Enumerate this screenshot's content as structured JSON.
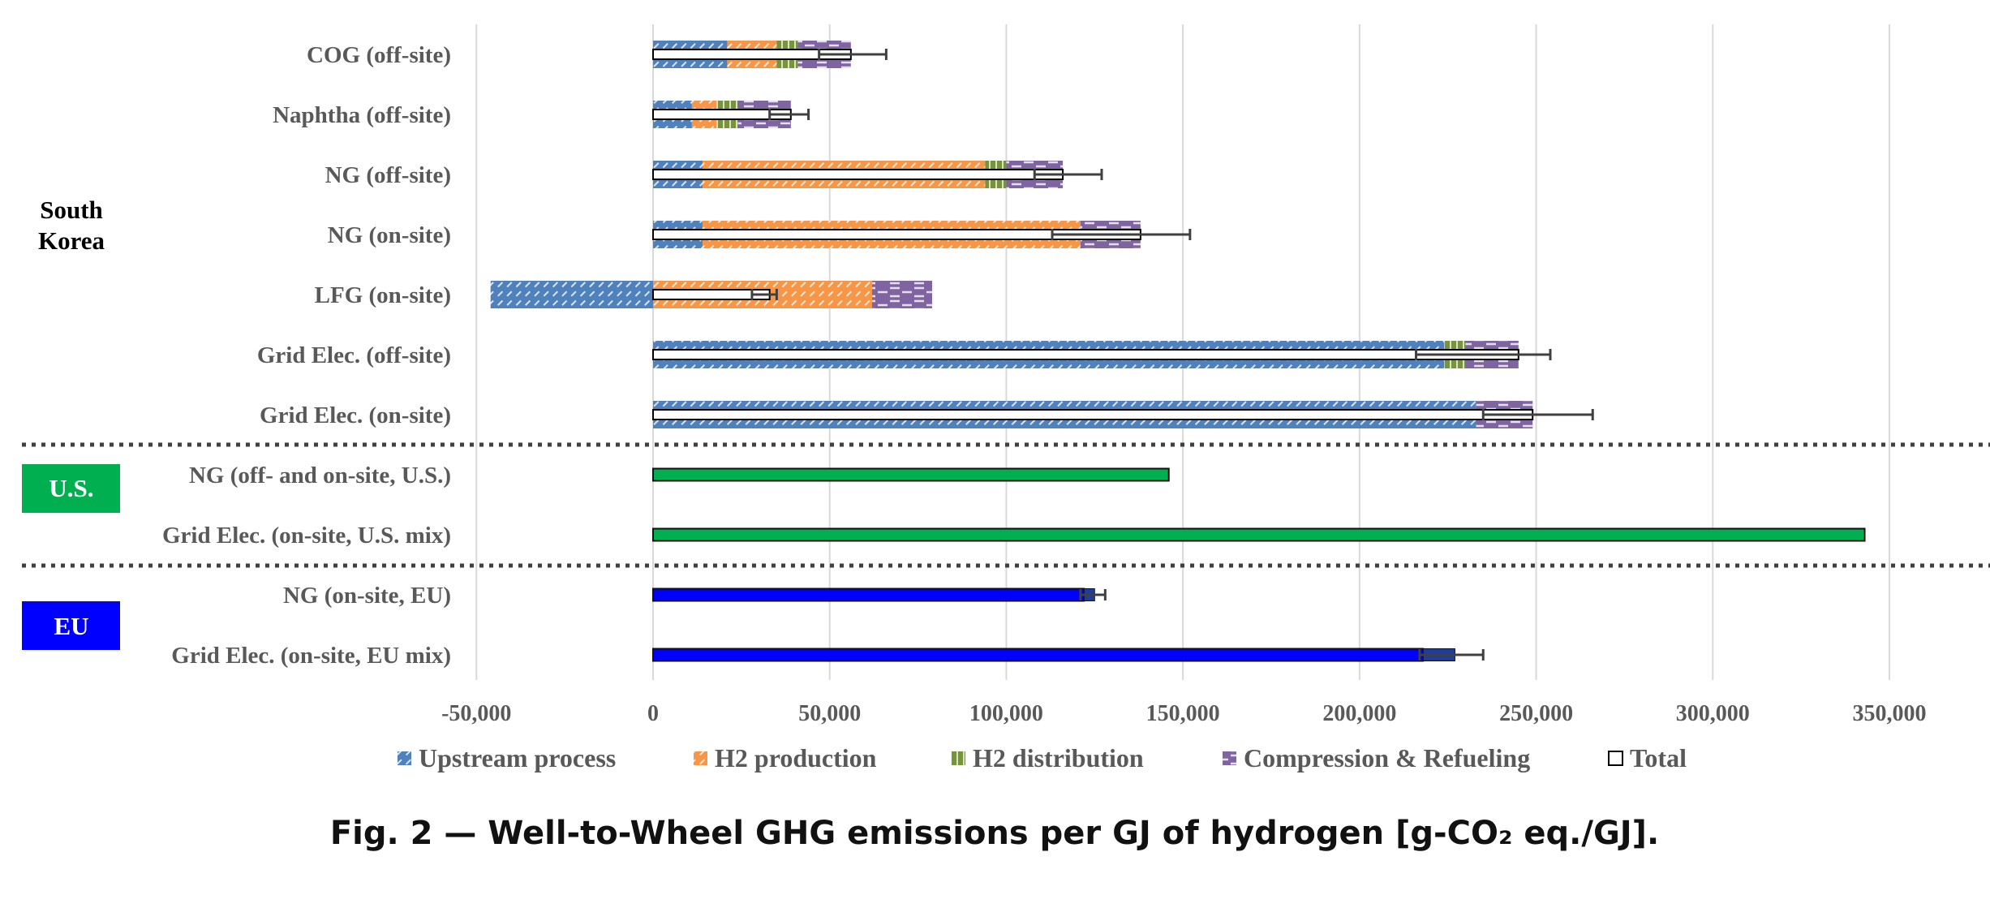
{
  "chart_data": {
    "type": "bar",
    "orientation": "horizontal",
    "stacked": true,
    "caption": "Fig. 2 — Well-to-Wheel GHG emissions per GJ of hydrogen [g-CO₂ eq./GJ].",
    "xlim": [
      -50000,
      350000
    ],
    "x_ticks": [
      -50000,
      0,
      50000,
      100000,
      150000,
      200000,
      250000,
      300000,
      350000
    ],
    "x_tick_labels": [
      "-50,000",
      "0",
      "50,000",
      "100,000",
      "150,000",
      "200,000",
      "250,000",
      "300,000",
      "350,000"
    ],
    "grid": "vertical",
    "legend_position": "bottom",
    "legend": [
      {
        "key": "upstream",
        "label": "Upstream process",
        "color": "#4f81bd",
        "pattern": "diagonal-dashes"
      },
      {
        "key": "h2prod",
        "label": "H2 production",
        "color": "#f79646",
        "pattern": "diagonal-dashes"
      },
      {
        "key": "h2dist",
        "label": "H2 distribution",
        "color": "#77933c",
        "pattern": "vertical"
      },
      {
        "key": "comp",
        "label": "Compression & Refueling",
        "color": "#8064a2",
        "pattern": "dashes"
      },
      {
        "key": "total",
        "label": "Total",
        "color": "#ffffff",
        "pattern": "outline"
      }
    ],
    "regions": [
      {
        "label_lines": [
          "South",
          "Korea"
        ],
        "style": "plain",
        "bg": "",
        "fg": "#000000"
      },
      {
        "label_lines": [
          "U.S."
        ],
        "style": "box",
        "bg": "#00b050",
        "fg": "#ffffff"
      },
      {
        "label_lines": [
          "EU"
        ],
        "style": "box",
        "bg": "#0000ff",
        "fg": "#ffffff"
      }
    ],
    "categories": [
      {
        "label": "COG (off-site)",
        "region": 0,
        "segments": {
          "upstream": 21000,
          "h2prod": 14000,
          "h2dist": 6000,
          "comp": 15000
        },
        "total": 56000,
        "error_low": 47000,
        "error_high": 66000
      },
      {
        "label": "Naphtha (off-site)",
        "region": 0,
        "segments": {
          "upstream": 11000,
          "h2prod": 7000,
          "h2dist": 6000,
          "comp": 15000
        },
        "total": 39000,
        "error_low": 33000,
        "error_high": 44000
      },
      {
        "label": "NG (off-site)",
        "region": 0,
        "segments": {
          "upstream": 14000,
          "h2prod": 80000,
          "h2dist": 6000,
          "comp": 16000
        },
        "total": 116000,
        "error_low": 108000,
        "error_high": 127000
      },
      {
        "label": "NG (on-site)",
        "region": 0,
        "segments": {
          "upstream": 14000,
          "h2prod": 107000,
          "h2dist": 0,
          "comp": 17000
        },
        "total": 138000,
        "error_low": 113000,
        "error_high": 152000
      },
      {
        "label": "LFG (on-site)",
        "region": 0,
        "segments": {
          "upstream": -46000,
          "h2prod": 62000,
          "h2dist": 0,
          "comp": 17000
        },
        "total": 33000,
        "error_low": 28000,
        "error_high": 35000
      },
      {
        "label": "Grid Elec. (off-site)",
        "region": 0,
        "segments": {
          "upstream": 224000,
          "h2prod": 0,
          "h2dist": 6000,
          "comp": 15000
        },
        "total": 245000,
        "error_low": 216000,
        "error_high": 254000
      },
      {
        "label": "Grid Elec. (on-site)",
        "region": 0,
        "segments": {
          "upstream": 233000,
          "h2prod": 0,
          "h2dist": 0,
          "comp": 16000
        },
        "total": 249000,
        "error_low": 235000,
        "error_high": 266000
      },
      {
        "label": "NG (off- and on-site, U.S.)",
        "region": 1,
        "single": 146000,
        "color": "#00b050"
      },
      {
        "label": "Grid Elec. (on-site, U.S. mix)",
        "region": 1,
        "single": 343000,
        "color": "#00b050"
      },
      {
        "label": "NG (on-site, EU)",
        "region": 2,
        "single": 122000,
        "secondary": 3000,
        "color": "#0000ff",
        "error_low": 121000,
        "error_high": 128000
      },
      {
        "label": "Grid Elec. (on-site, EU mix)",
        "region": 2,
        "single": 218000,
        "secondary": 9000,
        "color": "#0000ff",
        "error_low": 217000,
        "error_high": 235000
      }
    ]
  }
}
